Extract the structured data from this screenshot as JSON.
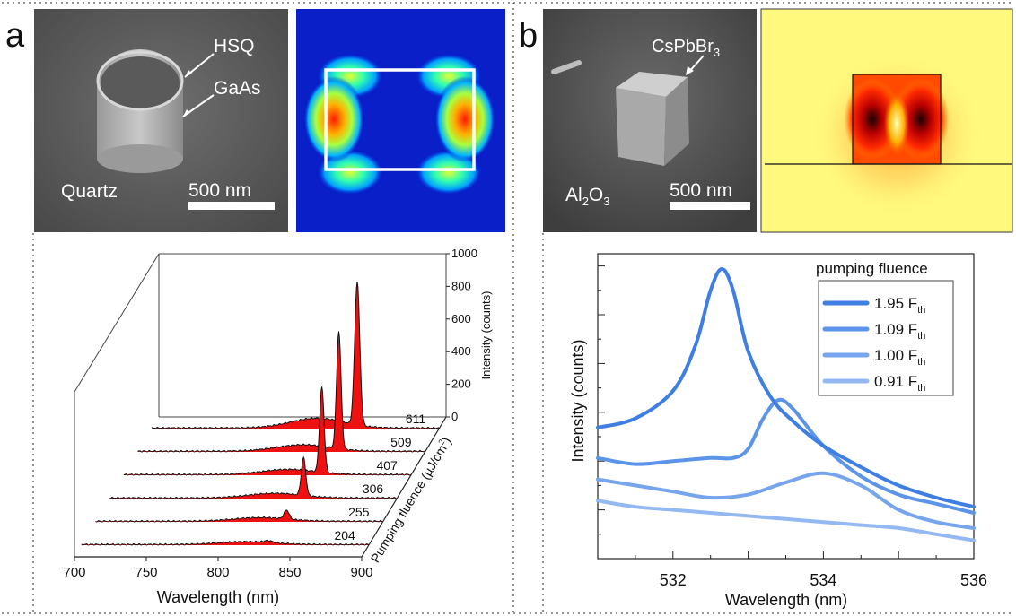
{
  "panel_a": {
    "letter": "a",
    "sem": {
      "label_hsq": "HSQ",
      "label_gaas": "GaAs",
      "label_substrate": "Quartz",
      "scalebar": "500 nm"
    }
  },
  "panel_b": {
    "letter": "b",
    "sem": {
      "label_particle_main": "CsPbBr",
      "label_particle_sub": "3",
      "label_substrate_main": "Al",
      "label_substrate_sub": "2",
      "label_substrate_tail": "O",
      "label_substrate_sub2": "3",
      "scalebar": "500 nm"
    }
  },
  "chart_data": [
    {
      "type": "waterfall-area",
      "panel": "a",
      "xlabel": "Wavelength (nm)",
      "ylabel": "Intensity (counts)",
      "zlabel_main": "Pumping fluence (µJ/cm",
      "zlabel_sup": "2",
      "zlabel_end": ")",
      "xlim": [
        700,
        900
      ],
      "x_ticks": [
        "700",
        "750",
        "800",
        "850",
        "900"
      ],
      "ylim": [
        0,
        1000
      ],
      "y_ticks": [
        "0",
        "200",
        "400",
        "600",
        "800",
        "1000"
      ],
      "fill_color": "#ee1111",
      "series": [
        {
          "name": "204",
          "values": {
            "broad_center": 815,
            "broad_amp": 18,
            "peak_center": 830,
            "peak_amp": 12,
            "peak_width": 4
          }
        },
        {
          "name": "255",
          "values": {
            "broad_center": 815,
            "broad_amp": 22,
            "peak_center": 833,
            "peak_amp": 55,
            "peak_width": 2.5
          }
        },
        {
          "name": "306",
          "values": {
            "broad_center": 815,
            "broad_amp": 28,
            "peak_center": 835,
            "peak_amp": 230,
            "peak_width": 2.2
          }
        },
        {
          "name": "407",
          "values": {
            "broad_center": 815,
            "broad_amp": 32,
            "peak_center": 838,
            "peak_amp": 520,
            "peak_width": 2.2
          }
        },
        {
          "name": "509",
          "values": {
            "broad_center": 815,
            "broad_amp": 40,
            "peak_center": 840,
            "peak_amp": 720,
            "peak_width": 2.2
          }
        },
        {
          "name": "611",
          "values": {
            "broad_center": 815,
            "broad_amp": 60,
            "peak_center": 843,
            "peak_amp": 880,
            "peak_width": 2.5
          }
        }
      ]
    },
    {
      "type": "line",
      "panel": "b",
      "xlabel": "Wavelength (nm)",
      "ylabel": "Intensity (counts)",
      "xlim": [
        531,
        536
      ],
      "x_ticks": [
        "532",
        "534",
        "536"
      ],
      "legend_title": "pumping fluence",
      "legend_placement": "top-right",
      "series": [
        {
          "name_main": "1.95 F",
          "name_sub": "th",
          "color": "#3f7fe3",
          "x": [
            531,
            531.5,
            532,
            532.3,
            532.5,
            532.65,
            532.8,
            533,
            533.3,
            533.6,
            534,
            534.5,
            535,
            535.5,
            536
          ],
          "y": [
            0.43,
            0.46,
            0.55,
            0.7,
            0.88,
            0.95,
            0.88,
            0.68,
            0.53,
            0.45,
            0.37,
            0.3,
            0.24,
            0.2,
            0.17
          ]
        },
        {
          "name_main": "1.09 F",
          "name_sub": "th",
          "color": "#5c94ea",
          "x": [
            531,
            531.5,
            532,
            532.5,
            532.8,
            533,
            533.2,
            533.4,
            533.6,
            534,
            534.5,
            535,
            535.5,
            536
          ],
          "y": [
            0.33,
            0.31,
            0.32,
            0.33,
            0.33,
            0.36,
            0.46,
            0.52,
            0.49,
            0.37,
            0.27,
            0.21,
            0.18,
            0.15
          ]
        },
        {
          "name_main": "1.00 F",
          "name_sub": "th",
          "color": "#76a5ee",
          "x": [
            531,
            531.5,
            532,
            532.5,
            533,
            533.5,
            534,
            534.5,
            535,
            535.5,
            536
          ],
          "y": [
            0.26,
            0.24,
            0.22,
            0.2,
            0.21,
            0.25,
            0.28,
            0.24,
            0.16,
            0.12,
            0.1
          ]
        },
        {
          "name_main": "0.91 F",
          "name_sub": "th",
          "color": "#93b8f2",
          "x": [
            531,
            531.5,
            532,
            532.5,
            533,
            533.5,
            534,
            534.5,
            535,
            535.5,
            536
          ],
          "y": [
            0.19,
            0.17,
            0.16,
            0.15,
            0.14,
            0.13,
            0.12,
            0.11,
            0.1,
            0.08,
            0.06
          ]
        }
      ]
    }
  ]
}
